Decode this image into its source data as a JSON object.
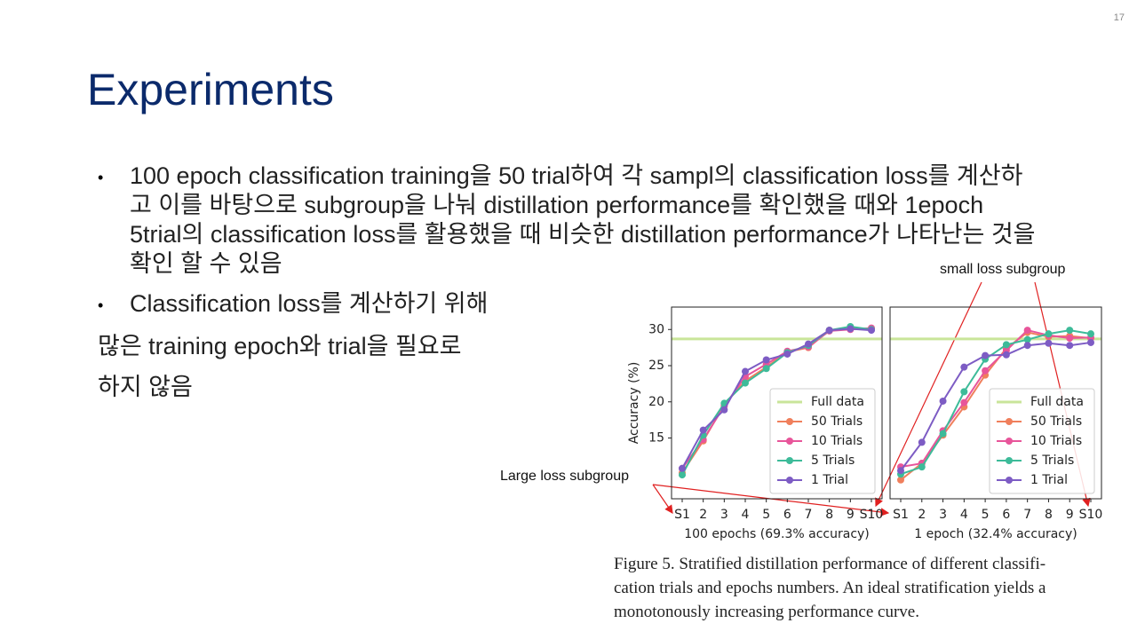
{
  "slide_number": "17",
  "title": "Experiments",
  "bullets": [
    "100 epoch classification training을 50 trial하여 각 sampl의 classification loss를 계산하고 이를 바탕으로 subgroup을 나눠 distillation performance를 확인했을 때와 1epoch 5trial의 classification loss를 활용했을 때 비슷한 distillation performance가 나타난는 것을 확인 할 수 있음",
    "Classification loss를 계산하기 위해"
  ],
  "body_lines": [
    "많은 training epoch와 trial을 필요로",
    "하지 않음"
  ],
  "annotations": [
    "small loss subgroup",
    "Large loss subgroup"
  ],
  "caption_lines": [
    "Figure 5.  Stratified distillation performance of different classifi-",
    "cation trials and epochs numbers.  An ideal stratification yields a",
    "monotonously increasing performance curve."
  ],
  "chart_data": [
    {
      "type": "line",
      "xlabel": "100 epochs (69.3% accuracy)",
      "ylabel": "Accuracy (%)",
      "categories": [
        "S1",
        "2",
        "3",
        "4",
        "5",
        "6",
        "7",
        "8",
        "9",
        "S10"
      ],
      "ylim": [
        6.6,
        33.1
      ],
      "yticks": [
        15,
        20,
        25,
        30
      ],
      "legend": "lower right",
      "reference": {
        "name": "Full data",
        "value": 28.7,
        "color": "#c9e59a"
      },
      "series": [
        {
          "name": "50 Trials",
          "color": "#f07f5c",
          "values": [
            10.2,
            14.6,
            19.6,
            22.9,
            24.8,
            26.9,
            27.5,
            29.9,
            30.1,
            30.1
          ]
        },
        {
          "name": "10 Trials",
          "color": "#e8559a",
          "values": [
            10.8,
            14.8,
            19.4,
            23.5,
            25.2,
            27.0,
            27.6,
            29.8,
            30.0,
            30.2
          ]
        },
        {
          "name": "5 Trials",
          "color": "#3dbb99",
          "values": [
            9.9,
            15.4,
            19.8,
            22.6,
            24.6,
            26.8,
            27.8,
            29.9,
            30.4,
            30.0
          ]
        },
        {
          "name": "1 Trial",
          "color": "#7d5cc4",
          "values": [
            10.8,
            16.1,
            18.9,
            24.2,
            25.8,
            26.6,
            28.0,
            29.9,
            30.1,
            29.9
          ]
        }
      ]
    },
    {
      "type": "line",
      "xlabel": "1 epoch (32.4% accuracy)",
      "categories": [
        "S1",
        "2",
        "3",
        "4",
        "5",
        "6",
        "7",
        "8",
        "9",
        "S10"
      ],
      "ylim": [
        6.6,
        33.1
      ],
      "legend": "lower right",
      "reference": {
        "name": "Full data",
        "value": 28.7,
        "color": "#c9e59a"
      },
      "series": [
        {
          "name": "50 Trials",
          "color": "#f07f5c",
          "values": [
            9.2,
            11.5,
            15.4,
            19.3,
            23.7,
            27.4,
            29.6,
            29.0,
            29.1,
            28.8
          ]
        },
        {
          "name": "10 Trials",
          "color": "#e8559a",
          "values": [
            11.0,
            11.5,
            16.0,
            19.9,
            24.3,
            27.1,
            29.9,
            29.2,
            28.8,
            28.9
          ]
        },
        {
          "name": "5 Trials",
          "color": "#3dbb99",
          "values": [
            10.0,
            11.0,
            15.6,
            21.4,
            25.9,
            27.9,
            28.6,
            29.4,
            29.9,
            29.4
          ]
        },
        {
          "name": "1 Trial",
          "color": "#7d5cc4",
          "values": [
            10.5,
            14.4,
            20.1,
            24.8,
            26.4,
            26.5,
            27.8,
            28.1,
            27.8,
            28.2
          ]
        }
      ]
    }
  ]
}
